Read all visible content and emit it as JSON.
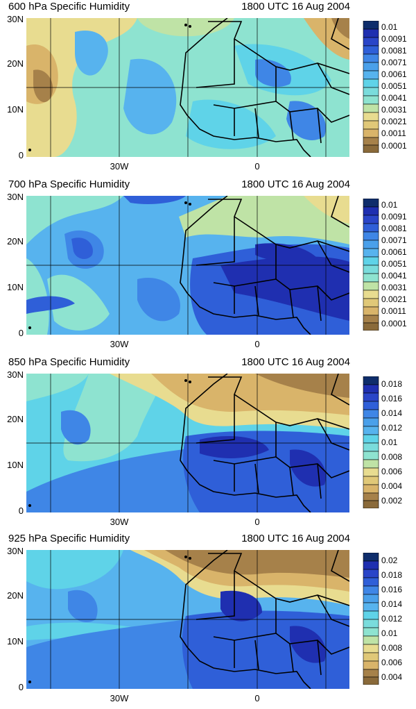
{
  "panels": [
    {
      "level_title": "600 hPa Specific Humidity",
      "time_title": "1800 UTC 16 Aug 2004",
      "y_ticks": [
        "30N",
        "20N",
        "10N",
        "0"
      ],
      "x_ticks": [
        "30W",
        "0"
      ],
      "colorbar_labels": [
        "0.01",
        "0.0091",
        "0.0081",
        "0.0071",
        "0.0061",
        "0.0051",
        "0.0041",
        "0.0031",
        "0.0021",
        "0.0011",
        "0.0001"
      ]
    },
    {
      "level_title": "700 hPa Specific Humidity",
      "time_title": "1800 UTC 16 Aug 2004",
      "y_ticks": [
        "30N",
        "20N",
        "10N",
        "0"
      ],
      "x_ticks": [
        "30W",
        "0"
      ],
      "colorbar_labels": [
        "0.01",
        "0.0091",
        "0.0081",
        "0.0071",
        "0.0061",
        "0.0051",
        "0.0041",
        "0.0031",
        "0.0021",
        "0.0011",
        "0.0001"
      ]
    },
    {
      "level_title": "850 hPa Specific Humidity",
      "time_title": "1800 UTC 16 Aug 2004",
      "y_ticks": [
        "30N",
        "20N",
        "10N",
        "0"
      ],
      "x_ticks": [
        "30W",
        "0"
      ],
      "colorbar_labels": [
        "0.018",
        "0.016",
        "0.014",
        "0.012",
        "0.01",
        "0.008",
        "0.006",
        "0.004",
        "0.002"
      ]
    },
    {
      "level_title": "925 hPa Specific Humidity",
      "time_title": "1800 UTC 16 Aug 2004",
      "y_ticks": [
        "30N",
        "20N",
        "10N",
        "0"
      ],
      "x_ticks": [
        "30W",
        "0"
      ],
      "colorbar_labels": [
        "0.02",
        "0.018",
        "0.016",
        "0.014",
        "0.012",
        "0.01",
        "0.008",
        "0.006",
        "0.004"
      ]
    }
  ],
  "colors": {
    "darkest_blue": "#0f2d6b",
    "deep_blue": "#1f2fb0",
    "blue": "#2f5fd8",
    "mid_blue": "#3f86e6",
    "light_blue": "#57b3ee",
    "cyan": "#5fd3e8",
    "aqua": "#8ee3d0",
    "pale_green": "#bfe3a6",
    "pale_yellow": "#e8dc90",
    "tan": "#d9b46a",
    "brown": "#a6814a",
    "dark_brown": "#8a6a3a"
  }
}
